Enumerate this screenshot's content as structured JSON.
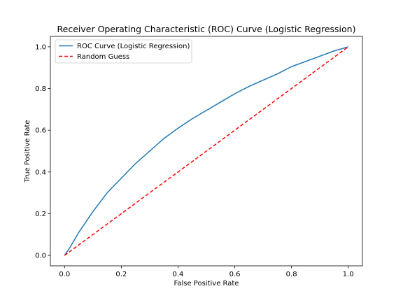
{
  "chart_data": {
    "type": "line",
    "title": "Receiver Operating Characteristic (ROC) Curve (Logistic Regression)",
    "xlabel": "False Positive Rate",
    "ylabel": "True Positive Rate",
    "xlim": [
      -0.05,
      1.05
    ],
    "ylim": [
      -0.05,
      1.05
    ],
    "xticks": [
      0.0,
      0.2,
      0.4,
      0.6,
      0.8,
      1.0
    ],
    "yticks": [
      0.0,
      0.2,
      0.4,
      0.6,
      0.8,
      1.0
    ],
    "xtick_labels": [
      "0.0",
      "0.2",
      "0.4",
      "0.6",
      "0.8",
      "1.0"
    ],
    "ytick_labels": [
      "0.0",
      "0.2",
      "0.4",
      "0.6",
      "0.8",
      "1.0"
    ],
    "grid": false,
    "legend_position": "upper-left",
    "series": [
      {
        "name": "ROC Curve (Logistic Regression)",
        "color": "#1f77b4",
        "style": "solid",
        "x": [
          0.0,
          0.02,
          0.05,
          0.1,
          0.15,
          0.2,
          0.25,
          0.3,
          0.35,
          0.4,
          0.45,
          0.5,
          0.55,
          0.6,
          0.65,
          0.7,
          0.75,
          0.8,
          0.85,
          0.9,
          0.95,
          1.0
        ],
        "y": [
          0.0,
          0.04,
          0.11,
          0.21,
          0.3,
          0.37,
          0.44,
          0.5,
          0.56,
          0.61,
          0.655,
          0.695,
          0.735,
          0.775,
          0.81,
          0.84,
          0.87,
          0.905,
          0.93,
          0.955,
          0.98,
          1.0
        ]
      },
      {
        "name": "Random Guess",
        "color": "#ff0000",
        "style": "dashed",
        "x": [
          0.0,
          1.0
        ],
        "y": [
          0.0,
          1.0
        ]
      }
    ]
  }
}
